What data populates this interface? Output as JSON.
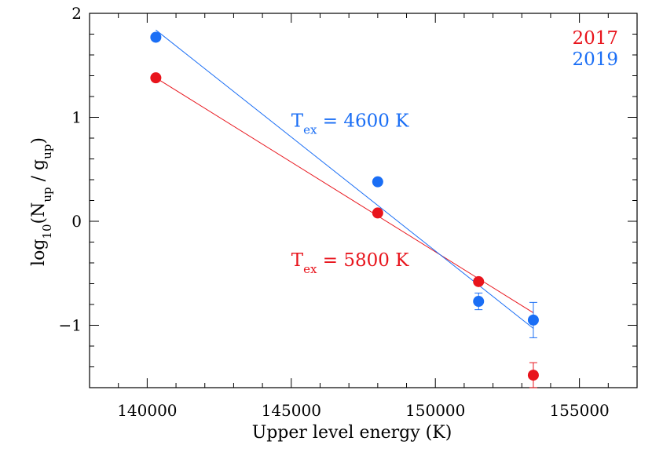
{
  "chart_data": {
    "type": "scatter",
    "title": "",
    "xlabel": "Upper level energy (K)",
    "ylabel": {
      "main": "log",
      "sub1": "10",
      "mid1": "(N",
      "sub2": "up",
      "mid2": " / g",
      "sub3": "up",
      "end": ")"
    },
    "xlim": [
      138000,
      157000
    ],
    "ylim": [
      -1.6,
      2.0
    ],
    "xticks": [
      140000,
      145000,
      150000,
      155000
    ],
    "xtick_labels": [
      "140000",
      "145000",
      "150000",
      "155000"
    ],
    "yticks": [
      -1,
      0,
      1,
      2
    ],
    "ytick_labels": [
      "−1",
      "0",
      "1",
      "2"
    ],
    "grid": false,
    "legend_placement": "top-right",
    "series": [
      {
        "name": "2017",
        "color": "#e8141c",
        "points": [
          {
            "x": 140300,
            "y": 1.38,
            "err": 0.02
          },
          {
            "x": 148000,
            "y": 0.08,
            "err": 0.02
          },
          {
            "x": 151500,
            "y": -0.58,
            "err": 0.02
          },
          {
            "x": 153400,
            "y": -1.48,
            "err": 0.12
          }
        ],
        "fit": {
          "x": [
            140300,
            153400
          ],
          "y": [
            1.38,
            -0.88
          ]
        },
        "annotation": {
          "prefix": "T",
          "sub": "ex",
          "suffix": " = 5800 K",
          "x": 145000,
          "y": -0.37
        }
      },
      {
        "name": "2019",
        "color": "#1a6ef5",
        "points": [
          {
            "x": 140300,
            "y": 1.77,
            "err": 0.02
          },
          {
            "x": 148000,
            "y": 0.38,
            "err": 0.02
          },
          {
            "x": 151500,
            "y": -0.77,
            "err": 0.08
          },
          {
            "x": 153400,
            "y": -0.95,
            "err": 0.17
          }
        ],
        "fit": {
          "x": [
            140300,
            153400
          ],
          "y": [
            1.84,
            -1.03
          ]
        },
        "annotation": {
          "prefix": "T",
          "sub": "ex",
          "suffix": " = 4600 K",
          "x": 145000,
          "y": 0.97
        }
      }
    ]
  }
}
